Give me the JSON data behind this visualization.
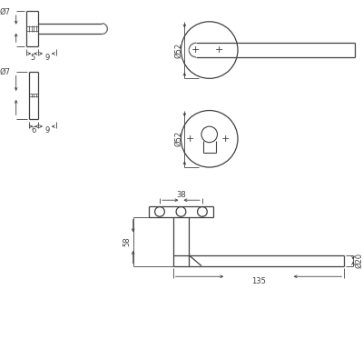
{
  "bg_color": "#ffffff",
  "line_color": "#404040",
  "dim_color": "#404040",
  "figsize": [
    4.0,
    3.73
  ],
  "dpi": 100,
  "labels": {
    "d7_top": "Ø7",
    "d7_bot": "Ø7",
    "dim5": "5",
    "dim9_top": "9",
    "dim6": "6",
    "dim9_bot": "9",
    "d52_top": "Ø52",
    "d52_bot": "Ø52",
    "dim38": "38",
    "dim58": "58",
    "dim135": "135",
    "d20": "Ø20"
  }
}
